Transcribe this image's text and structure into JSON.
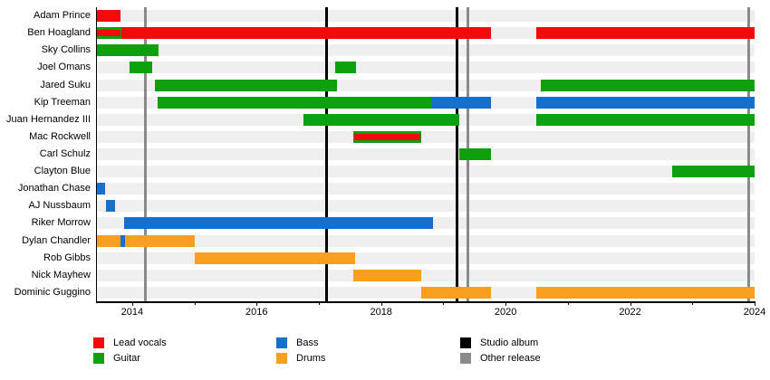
{
  "colors": {
    "lead_vocals": "#f40a0a",
    "guitar": "#0ca10c",
    "bass": "#1570cd",
    "drums": "#f8a01e",
    "studio_album": "#000000",
    "other_release": "#8a8a8a",
    "row_band": "#efefef",
    "axis": "#000000"
  },
  "chart_data": {
    "type": "timeline",
    "x_axis": {
      "domain_start": 2013.42,
      "domain_end": 2024.0,
      "major_ticks": [
        2014,
        2016,
        2018,
        2020,
        2022,
        2024
      ],
      "minor_ticks": [
        2015,
        2017,
        2019,
        2021,
        2023
      ],
      "grid": "off"
    },
    "members": [
      {
        "name": "Adam Prince",
        "segments": [
          {
            "role": "lead_vocals",
            "start": 2013.42,
            "end": 2013.82
          }
        ]
      },
      {
        "name": "Ben Hoagland",
        "segments": [
          {
            "role": "guitar_vocals",
            "start": 2013.42,
            "end": 2013.83
          },
          {
            "role": "lead_vocals",
            "start": 2013.83,
            "end": 2019.76
          },
          {
            "role": "lead_vocals",
            "start": 2020.5,
            "end": 2024.0
          }
        ]
      },
      {
        "name": "Sky Collins",
        "segments": [
          {
            "role": "guitar",
            "start": 2013.42,
            "end": 2014.42
          }
        ]
      },
      {
        "name": "Joel Omans",
        "segments": [
          {
            "role": "guitar",
            "start": 2013.96,
            "end": 2014.32
          },
          {
            "role": "guitar",
            "start": 2017.26,
            "end": 2017.59
          }
        ]
      },
      {
        "name": "Jared Suku",
        "segments": [
          {
            "role": "guitar",
            "start": 2014.37,
            "end": 2017.29
          },
          {
            "role": "guitar",
            "start": 2020.56,
            "end": 2024.0
          }
        ]
      },
      {
        "name": "Kip Treeman",
        "segments": [
          {
            "role": "guitar",
            "start": 2014.41,
            "end": 2018.82
          },
          {
            "role": "bass",
            "start": 2018.82,
            "end": 2019.76
          },
          {
            "role": "bass",
            "start": 2020.5,
            "end": 2024.0
          }
        ]
      },
      {
        "name": "Juan Hernandez III",
        "segments": [
          {
            "role": "guitar",
            "start": 2016.75,
            "end": 2019.25
          },
          {
            "role": "guitar",
            "start": 2020.5,
            "end": 2024.0
          }
        ]
      },
      {
        "name": "Mac Rockwell",
        "segments": [
          {
            "role": "guitar_vocals",
            "start": 2017.55,
            "end": 2018.64
          }
        ]
      },
      {
        "name": "Carl Schulz",
        "segments": [
          {
            "role": "guitar",
            "start": 2019.25,
            "end": 2019.77
          }
        ]
      },
      {
        "name": "Clayton Blue",
        "segments": [
          {
            "role": "guitar",
            "start": 2022.67,
            "end": 2024.0
          }
        ]
      },
      {
        "name": "Jonathan Chase",
        "segments": [
          {
            "role": "bass",
            "start": 2013.44,
            "end": 2013.57
          }
        ]
      },
      {
        "name": "AJ Nussbaum",
        "segments": [
          {
            "role": "bass",
            "start": 2013.58,
            "end": 2013.72
          }
        ]
      },
      {
        "name": "Riker Morrow",
        "segments": [
          {
            "role": "bass",
            "start": 2013.87,
            "end": 2018.84
          }
        ]
      },
      {
        "name": "Dylan Chandler",
        "segments": [
          {
            "role": "drums",
            "start": 2013.42,
            "end": 2013.82
          },
          {
            "role": "bass",
            "start": 2013.82,
            "end": 2013.88
          },
          {
            "role": "drums",
            "start": 2013.88,
            "end": 2015.0
          }
        ]
      },
      {
        "name": "Rob Gibbs",
        "segments": [
          {
            "role": "drums",
            "start": 2015.0,
            "end": 2017.58
          }
        ]
      },
      {
        "name": "Nick Mayhew",
        "segments": [
          {
            "role": "drums",
            "start": 2017.55,
            "end": 2018.65
          }
        ]
      },
      {
        "name": "Dominic Guggino",
        "segments": [
          {
            "role": "drums",
            "start": 2018.64,
            "end": 2019.76
          },
          {
            "role": "drums",
            "start": 2020.5,
            "end": 2024.0
          }
        ]
      }
    ],
    "events": [
      {
        "type": "other_release",
        "year": 2014.21
      },
      {
        "type": "studio_album",
        "year": 2017.12
      },
      {
        "type": "studio_album",
        "year": 2019.22
      },
      {
        "type": "other_release",
        "year": 2019.39
      },
      {
        "type": "other_release",
        "year": 2023.91
      }
    ],
    "legend_position": "bottom"
  },
  "legend": {
    "col1": [
      {
        "label": "Lead vocals",
        "key": "lead_vocals"
      },
      {
        "label": "Guitar",
        "key": "guitar"
      }
    ],
    "col2": [
      {
        "label": "Bass",
        "key": "bass"
      },
      {
        "label": "Drums",
        "key": "drums"
      }
    ],
    "col3": [
      {
        "label": "Studio album",
        "key": "studio_album"
      },
      {
        "label": "Other release",
        "key": "other_release"
      }
    ]
  }
}
